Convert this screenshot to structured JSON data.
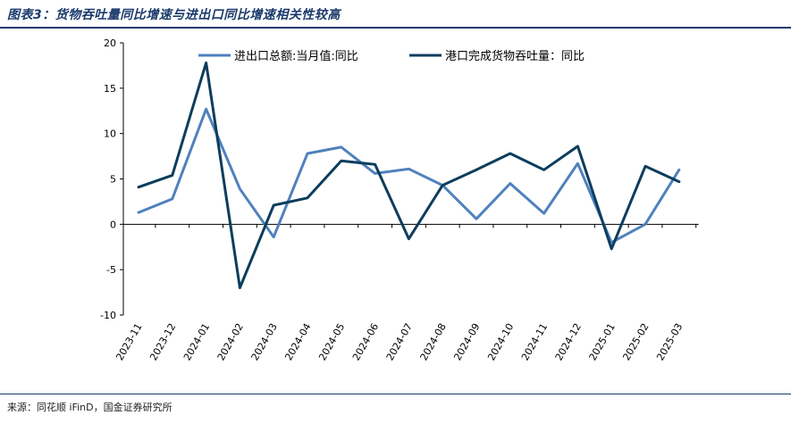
{
  "figure": {
    "title": "图表3：货物吞吐量同比增速与进出口同比增速相关性较高",
    "source": "来源：同花顺 iFinD，国金证券研究所"
  },
  "chart_data": {
    "type": "line",
    "x": [
      "2023-11",
      "2023-12",
      "2024-01",
      "2024-02",
      "2024-03",
      "2024-04",
      "2024-05",
      "2024-06",
      "2024-07",
      "2024-08",
      "2024-09",
      "2024-10",
      "2024-11",
      "2024-12",
      "2025-01",
      "2025-02",
      "2025-03"
    ],
    "series": [
      {
        "name": "进出口总额:当月值:同比",
        "color": "#4f81bd",
        "values": [
          1.3,
          2.8,
          12.7,
          3.9,
          -1.4,
          7.8,
          8.5,
          5.6,
          6.1,
          4.3,
          0.6,
          4.5,
          1.2,
          6.7,
          -2.0,
          0.0,
          6.0
        ]
      },
      {
        "name": "港口完成货物吞吐量：同比",
        "color": "#0d3d5c",
        "values": [
          4.1,
          5.4,
          17.8,
          -7.0,
          2.1,
          2.9,
          7.0,
          6.6,
          -1.6,
          4.3,
          6.0,
          7.8,
          6.0,
          8.6,
          -2.7,
          6.4,
          4.7
        ]
      }
    ],
    "ylim": [
      -10,
      20
    ],
    "yticks": [
      -10,
      -5,
      0,
      5,
      10,
      15,
      20
    ],
    "grid": false,
    "legend": "top-right"
  }
}
